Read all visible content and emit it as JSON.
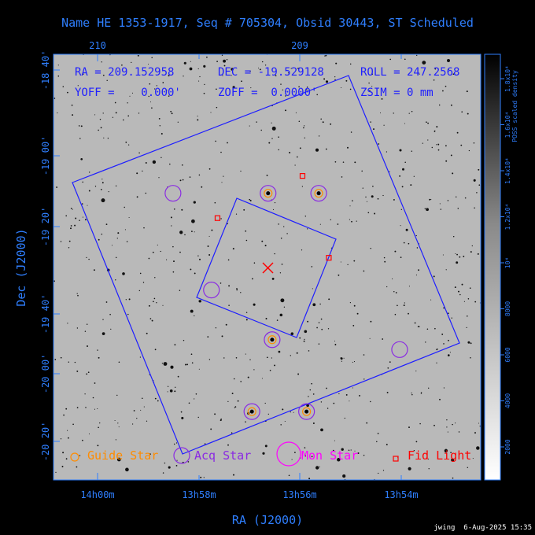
{
  "chart_data": {
    "type": "scatter",
    "title": "Name HE 1353-1917, Seq # 705304, Obsid 30443, ST Scheduled",
    "xlabel": "RA (J2000)",
    "ylabel": "Dec (J2000)",
    "x_ticks_bottom": [
      "14h00m",
      "13h58m",
      "13h56m",
      "13h54m"
    ],
    "x_ticks_top": [
      "210",
      "209"
    ],
    "y_ticks": [
      "-18 40'",
      "-19 00'",
      "-19 20'",
      "-19 40'",
      "-20 00'",
      "-20 20'"
    ],
    "colorbar": {
      "label": "POSS scaled density",
      "ticks": [
        "2000",
        "4000",
        "6000",
        "8000",
        "10⁴",
        "1.2x10⁴",
        "1.4x10⁴",
        "1.6x10⁴",
        "1.8x10⁴"
      ]
    },
    "info": {
      "ra": "RA = 209.152958",
      "dec": "DEC = -19.529128",
      "roll": "ROLL = 247.2568",
      "yoff": "YOFF =    0.000'",
      "zoff": "ZOFF =  0.0000'",
      "zsim": "ZSIM = 0 mm"
    },
    "legend": [
      {
        "name": "Guide Star",
        "color": "#ff8c00",
        "marker": "circle-small"
      },
      {
        "name": "Acq Star",
        "color": "#8a2be2",
        "marker": "circle-medium"
      },
      {
        "name": "Mon Star",
        "color": "#ff00ff",
        "marker": "circle-large"
      },
      {
        "name": "Fid Light",
        "color": "#ff0000",
        "marker": "square"
      }
    ],
    "series": [
      {
        "name": "Guide Star",
        "marker": "circle",
        "points": [
          {
            "ra": 209.15,
            "dec": -19.23
          },
          {
            "ra": 208.9,
            "dec": -19.23
          },
          {
            "ra": 209.13,
            "dec": -19.82
          },
          {
            "ra": 209.23,
            "dec": -20.11
          },
          {
            "ra": 208.96,
            "dec": -20.11
          }
        ]
      },
      {
        "name": "Acq Star",
        "marker": "circle",
        "points": [
          {
            "ra": 209.62,
            "dec": -19.23
          },
          {
            "ra": 209.15,
            "dec": -19.23
          },
          {
            "ra": 208.9,
            "dec": -19.23
          },
          {
            "ra": 209.43,
            "dec": -19.62
          },
          {
            "ra": 209.13,
            "dec": -19.82
          },
          {
            "ra": 209.23,
            "dec": -20.11
          },
          {
            "ra": 208.96,
            "dec": -20.11
          },
          {
            "ra": 208.5,
            "dec": -19.86
          }
        ]
      },
      {
        "name": "Fid Light",
        "marker": "square",
        "points": [
          {
            "ra": 209.4,
            "dec": -19.33
          },
          {
            "ra": 208.98,
            "dec": -19.16
          },
          {
            "ra": 208.85,
            "dec": -19.49
          }
        ]
      }
    ],
    "center": {
      "ra": 209.152958,
      "dec": -19.529128
    },
    "footer": "jwing  6-Aug-2025 15:35"
  }
}
